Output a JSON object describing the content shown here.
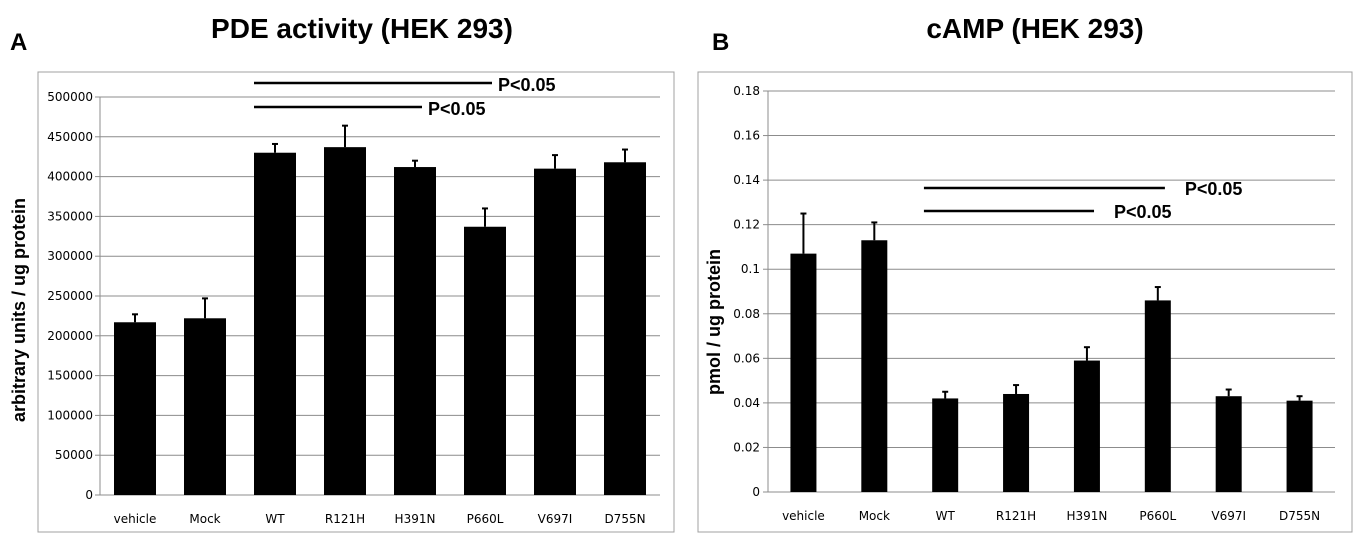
{
  "chart_data": [
    {
      "panel": "A",
      "type": "bar",
      "title": "PDE activity (HEK 293)",
      "xlabel": "",
      "ylabel": "arbitrary units / ug protein",
      "ylim": [
        0,
        500000
      ],
      "yticks": [
        0,
        50000,
        100000,
        150000,
        200000,
        250000,
        300000,
        350000,
        400000,
        450000,
        500000
      ],
      "grid": true,
      "bar_color": "#000000",
      "categories": [
        "vehicle",
        "Mock",
        "WT",
        "R121H",
        "H391N",
        "P660L",
        "V697I",
        "D755N"
      ],
      "values": [
        217000,
        222000,
        430000,
        437000,
        412000,
        337000,
        410000,
        418000
      ],
      "errors": [
        10000,
        25000,
        11000,
        27000,
        8000,
        23000,
        17000,
        16000
      ],
      "annotations": [
        {
          "text": "P<0.05",
          "from": "WT",
          "to": "H391N"
        },
        {
          "text": "P<0.05",
          "from": "WT",
          "to": "P660L"
        }
      ]
    },
    {
      "panel": "B",
      "type": "bar",
      "title": "cAMP (HEK 293)",
      "xlabel": "",
      "ylabel": "pmol / ug protein",
      "ylim": [
        0,
        0.18
      ],
      "yticks": [
        0,
        0.02,
        0.04,
        0.06,
        0.08,
        0.1,
        0.12,
        0.14,
        0.16,
        0.18
      ],
      "grid": true,
      "bar_color": "#000000",
      "categories": [
        "vehicle",
        "Mock",
        "WT",
        "R121H",
        "H391N",
        "P660L",
        "V697I",
        "D755N"
      ],
      "values": [
        0.107,
        0.113,
        0.042,
        0.044,
        0.059,
        0.086,
        0.043,
        0.041
      ],
      "errors": [
        0.018,
        0.008,
        0.003,
        0.004,
        0.006,
        0.006,
        0.003,
        0.002
      ],
      "annotations": [
        {
          "text": "P<0.05",
          "from": "WT",
          "to": "H391N"
        },
        {
          "text": "P<0.05",
          "from": "WT",
          "to": "P660L"
        }
      ]
    }
  ]
}
